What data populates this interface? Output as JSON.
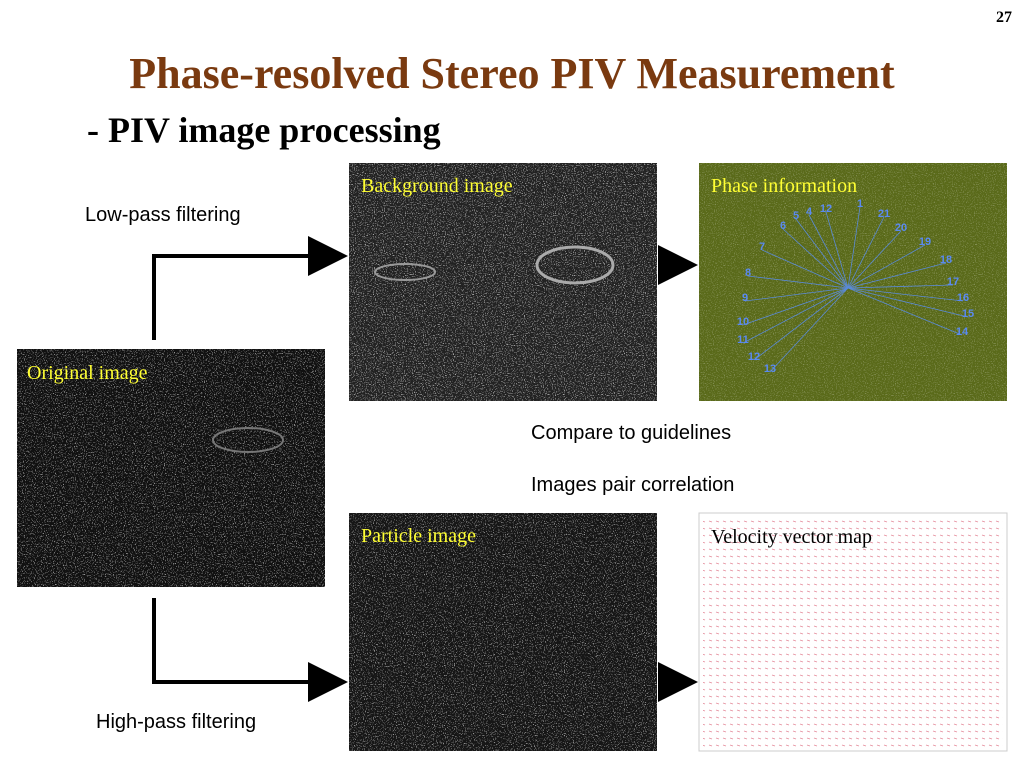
{
  "page_number": "27",
  "title": "Phase-resolved Stereo PIV Measurement",
  "subtitle": "- PIV image processing",
  "labels": {
    "low_pass": "Low-pass filtering",
    "high_pass": "High-pass filtering",
    "compare": "Compare to guidelines",
    "correlation": "Images pair correlation"
  },
  "images": {
    "original": "Original image",
    "background": "Background image",
    "phase": "Phase information",
    "particle": "Particle image",
    "velocity": "Velocity vector map"
  },
  "phase_labels": [
    "1",
    "21",
    "20",
    "19",
    "18",
    "17",
    "16",
    "15",
    "14",
    "13",
    "12",
    "11",
    "10",
    "9",
    "8",
    "7",
    "6",
    "5",
    "4",
    "12"
  ]
}
